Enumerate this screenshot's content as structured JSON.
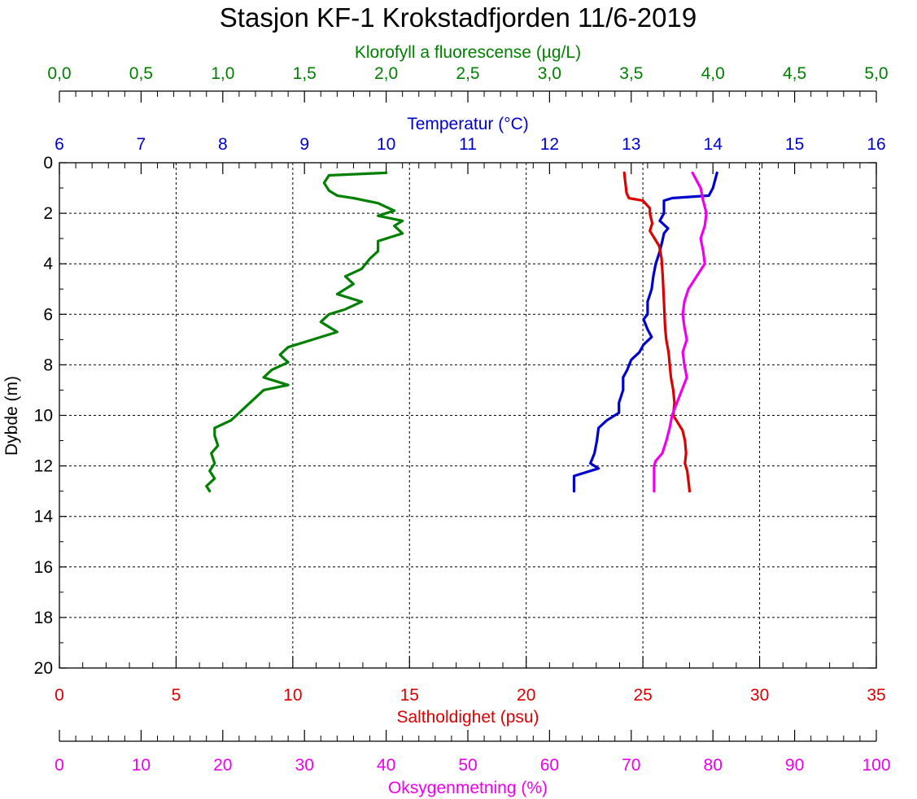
{
  "chart_data": {
    "type": "line",
    "title": "Stasjon KF-1 Krokstadfjorden 11/6-2019",
    "y_axis": {
      "label": "Dybde (m)",
      "range": [
        0,
        20
      ],
      "inverted": true,
      "ticks": [
        "0",
        "2",
        "4",
        "6",
        "8",
        "10",
        "12",
        "14",
        "16",
        "18",
        "20"
      ]
    },
    "grid": true,
    "series": [
      {
        "name": "Klorofyll a fluorescense (µg/L)",
        "axis": "top-outer",
        "color": "#008000",
        "axis_label": "Klorofyll a fluorescense (µg/L)",
        "range": [
          0,
          5
        ],
        "ticks": [
          "0,0",
          "0,5",
          "1,0",
          "1,5",
          "2,0",
          "2,5",
          "3,0",
          "3,5",
          "4,0",
          "4,5",
          "5,0"
        ],
        "points": [
          [
            2.0,
            0.4
          ],
          [
            1.65,
            0.5
          ],
          [
            1.62,
            0.8
          ],
          [
            1.65,
            1.1
          ],
          [
            1.7,
            1.3
          ],
          [
            1.8,
            1.4
          ],
          [
            1.95,
            1.6
          ],
          [
            2.05,
            1.9
          ],
          [
            1.95,
            2.1
          ],
          [
            2.1,
            2.3
          ],
          [
            2.05,
            2.5
          ],
          [
            2.1,
            2.8
          ],
          [
            1.95,
            3.1
          ],
          [
            1.95,
            3.5
          ],
          [
            1.9,
            3.8
          ],
          [
            1.85,
            4.2
          ],
          [
            1.75,
            4.5
          ],
          [
            1.8,
            4.8
          ],
          [
            1.7,
            5.2
          ],
          [
            1.85,
            5.5
          ],
          [
            1.75,
            5.8
          ],
          [
            1.65,
            6.0
          ],
          [
            1.6,
            6.3
          ],
          [
            1.7,
            6.7
          ],
          [
            1.55,
            7.0
          ],
          [
            1.4,
            7.3
          ],
          [
            1.35,
            7.6
          ],
          [
            1.4,
            7.9
          ],
          [
            1.3,
            8.2
          ],
          [
            1.25,
            8.5
          ],
          [
            1.4,
            8.8
          ],
          [
            1.25,
            9.0
          ],
          [
            1.2,
            9.3
          ],
          [
            1.15,
            9.6
          ],
          [
            1.1,
            9.9
          ],
          [
            1.05,
            10.2
          ],
          [
            0.95,
            10.5
          ],
          [
            0.95,
            10.8
          ],
          [
            0.97,
            11.2
          ],
          [
            0.93,
            11.5
          ],
          [
            0.95,
            11.9
          ],
          [
            0.92,
            12.2
          ],
          [
            0.95,
            12.5
          ],
          [
            0.9,
            12.8
          ],
          [
            0.92,
            13.0
          ]
        ]
      },
      {
        "name": "Temperatur (°C)",
        "axis": "top-inner",
        "color": "#0000cc",
        "axis_label": "Temperatur (°C)",
        "range": [
          6,
          16
        ],
        "ticks": [
          "6",
          "7",
          "8",
          "9",
          "10",
          "11",
          "12",
          "13",
          "14",
          "15",
          "16"
        ],
        "points": [
          [
            14.05,
            0.4
          ],
          [
            14.0,
            1.0
          ],
          [
            13.95,
            1.3
          ],
          [
            13.5,
            1.4
          ],
          [
            13.4,
            1.5
          ],
          [
            13.4,
            2.0
          ],
          [
            13.35,
            2.3
          ],
          [
            13.45,
            2.6
          ],
          [
            13.4,
            2.8
          ],
          [
            13.38,
            3.1
          ],
          [
            13.35,
            3.5
          ],
          [
            13.3,
            4.0
          ],
          [
            13.27,
            4.5
          ],
          [
            13.25,
            5.0
          ],
          [
            13.2,
            5.5
          ],
          [
            13.2,
            6.0
          ],
          [
            13.15,
            6.2
          ],
          [
            13.2,
            6.6
          ],
          [
            13.25,
            6.9
          ],
          [
            13.15,
            7.2
          ],
          [
            13.1,
            7.5
          ],
          [
            13.0,
            7.8
          ],
          [
            12.95,
            8.2
          ],
          [
            12.9,
            8.5
          ],
          [
            12.9,
            9.0
          ],
          [
            12.85,
            9.5
          ],
          [
            12.85,
            9.9
          ],
          [
            12.7,
            10.2
          ],
          [
            12.6,
            10.5
          ],
          [
            12.58,
            11.0
          ],
          [
            12.55,
            11.5
          ],
          [
            12.5,
            11.9
          ],
          [
            12.6,
            12.1
          ],
          [
            12.3,
            12.4
          ],
          [
            12.3,
            12.7
          ],
          [
            12.3,
            13.0
          ]
        ]
      },
      {
        "name": "Saltholdighet (psu)",
        "axis": "bottom-inner",
        "color": "#dd0000",
        "axis_label": "Saltholdighet (psu)",
        "range": [
          0,
          35
        ],
        "ticks": [
          "0",
          "5",
          "10",
          "15",
          "20",
          "25",
          "30",
          "35"
        ],
        "points": [
          [
            24.2,
            0.4
          ],
          [
            24.25,
            0.8
          ],
          [
            24.3,
            1.2
          ],
          [
            24.4,
            1.4
          ],
          [
            25.0,
            1.5
          ],
          [
            25.3,
            1.8
          ],
          [
            25.3,
            2.0
          ],
          [
            25.4,
            2.4
          ],
          [
            25.3,
            2.7
          ],
          [
            25.5,
            3.0
          ],
          [
            25.7,
            3.3
          ],
          [
            25.8,
            3.8
          ],
          [
            25.85,
            4.5
          ],
          [
            25.9,
            5.5
          ],
          [
            25.95,
            6.5
          ],
          [
            26.0,
            7.0
          ],
          [
            26.1,
            7.5
          ],
          [
            26.15,
            8.0
          ],
          [
            26.2,
            8.5
          ],
          [
            26.3,
            9.0
          ],
          [
            26.35,
            9.5
          ],
          [
            26.3,
            10.0
          ],
          [
            26.5,
            10.3
          ],
          [
            26.7,
            10.6
          ],
          [
            26.8,
            11.0
          ],
          [
            26.85,
            11.5
          ],
          [
            26.8,
            11.9
          ],
          [
            26.9,
            12.2
          ],
          [
            26.95,
            12.6
          ],
          [
            27.0,
            13.0
          ]
        ]
      },
      {
        "name": "Oksygenmetning (%)",
        "axis": "bottom-outer",
        "color": "#ee00ee",
        "axis_label": "Oksygenmetning (%)",
        "range": [
          0,
          100
        ],
        "ticks": [
          "0",
          "10",
          "20",
          "30",
          "40",
          "50",
          "60",
          "70",
          "80",
          "90",
          "100"
        ],
        "points": [
          [
            77.5,
            0.4
          ],
          [
            78.0,
            0.7
          ],
          [
            78.5,
            1.0
          ],
          [
            78.8,
            1.5
          ],
          [
            79.2,
            2.0
          ],
          [
            79.0,
            2.5
          ],
          [
            78.5,
            3.0
          ],
          [
            78.8,
            3.5
          ],
          [
            79.0,
            4.0
          ],
          [
            78.0,
            4.5
          ],
          [
            77.0,
            5.0
          ],
          [
            76.5,
            5.5
          ],
          [
            76.3,
            6.0
          ],
          [
            76.5,
            6.5
          ],
          [
            76.8,
            7.0
          ],
          [
            76.3,
            7.5
          ],
          [
            76.5,
            8.0
          ],
          [
            76.8,
            8.5
          ],
          [
            76.2,
            9.0
          ],
          [
            75.6,
            9.5
          ],
          [
            75.0,
            10.0
          ],
          [
            74.7,
            10.5
          ],
          [
            74.3,
            11.0
          ],
          [
            73.8,
            11.5
          ],
          [
            73.0,
            11.8
          ],
          [
            72.8,
            12.0
          ],
          [
            72.8,
            12.5
          ],
          [
            72.8,
            13.0
          ]
        ]
      }
    ]
  }
}
